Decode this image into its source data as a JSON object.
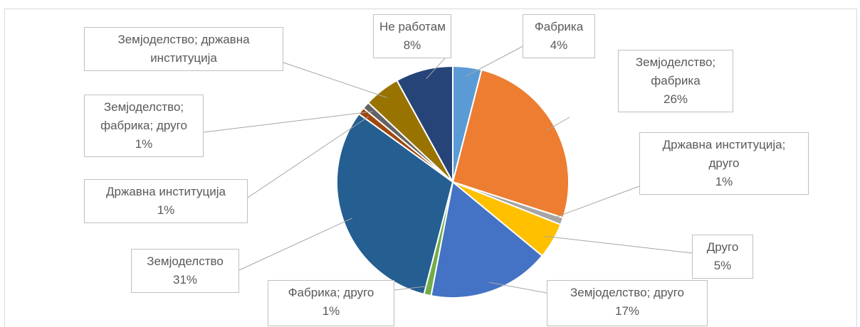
{
  "chart_data": {
    "type": "pie",
    "title": "",
    "start_angle_deg": 0,
    "direction": "clockwise",
    "slices": [
      {
        "label": "Фабрика",
        "value": 4,
        "value_text": "4%",
        "color": "#5b9bd5"
      },
      {
        "label": "Земјоделство; фабрика",
        "value": 26,
        "value_text": "26%",
        "color": "#ed7d31"
      },
      {
        "label": "Државна институција; друго",
        "value": 1,
        "value_text": "1%",
        "color": "#a5a5a5"
      },
      {
        "label": "Друго",
        "value": 5,
        "value_text": "5%",
        "color": "#ffc000"
      },
      {
        "label": "Земјоделство; друго",
        "value": 17,
        "value_text": "17%",
        "color": "#4472c4"
      },
      {
        "label": "Фабрика; друго",
        "value": 1,
        "value_text": "1%",
        "color": "#70ad47"
      },
      {
        "label": "Земјоделство",
        "value": 31,
        "value_text": "31%",
        "color": "#255e91"
      },
      {
        "label": "Државна институција",
        "value": 1,
        "value_text": "1%",
        "color": "#9e480e"
      },
      {
        "label": "Земјоделство; фабрика; друго",
        "value": 1,
        "value_text": "1%",
        "color": "#636363"
      },
      {
        "label": "Земјоделство; државна институција",
        "value": 5,
        "value_text": "",
        "color": "#997300"
      },
      {
        "label": "Не работам",
        "value": 8,
        "value_text": "8%",
        "color": "#264478"
      }
    ]
  },
  "labels": {
    "fabrika": {
      "l1": "Фабрика",
      "l2": "4%"
    },
    "zem_fabrika": {
      "l1": "Земјоделство;",
      "l2": "фабрика",
      "l3": "26%"
    },
    "drz_drugo": {
      "l1": "Државна институција;",
      "l2": "друго",
      "l3": "1%"
    },
    "drugo": {
      "l1": "Друго",
      "l2": "5%"
    },
    "zem_drugo": {
      "l1": "Земјоделство; друго",
      "l2": "17%"
    },
    "fab_drugo": {
      "l1": "Фабрика; друго",
      "l2": "1%"
    },
    "zem": {
      "l1": "Земјоделство",
      "l2": "31%"
    },
    "drz": {
      "l1": "Државна институција",
      "l2": "1%"
    },
    "zem_fab_drugo": {
      "l1": "Земјоделство;",
      "l2": "фабрика; друго",
      "l3": "1%"
    },
    "zem_drz": {
      "l1": "Земјоделство; државна",
      "l2": "институција"
    },
    "ne_rabotam": {
      "l1": "Не работам",
      "l2": "8%"
    }
  }
}
